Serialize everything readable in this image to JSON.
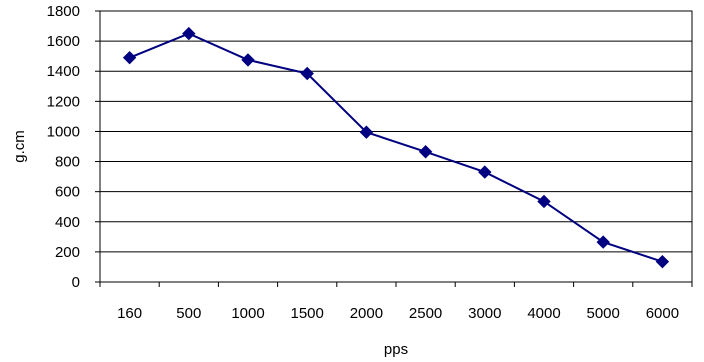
{
  "chart_data": {
    "type": "line",
    "categories": [
      "160",
      "500",
      "1000",
      "1500",
      "2000",
      "2500",
      "3000",
      "4000",
      "5000",
      "6000"
    ],
    "series": [
      {
        "values": [
          1490,
          1650,
          1475,
          1385,
          995,
          865,
          730,
          535,
          265,
          135
        ],
        "color": "#000080",
        "marker": "diamond"
      }
    ],
    "xlabel": "pps",
    "ylabel": "g.cm",
    "ylim": [
      0,
      1800
    ],
    "yticks": [
      0,
      200,
      400,
      600,
      800,
      1000,
      1200,
      1400,
      1600,
      1800
    ],
    "grid": "horizontal",
    "legend": "none",
    "colors": {
      "gridline": "#000000",
      "axis": "#000000",
      "series": "#000080"
    }
  }
}
